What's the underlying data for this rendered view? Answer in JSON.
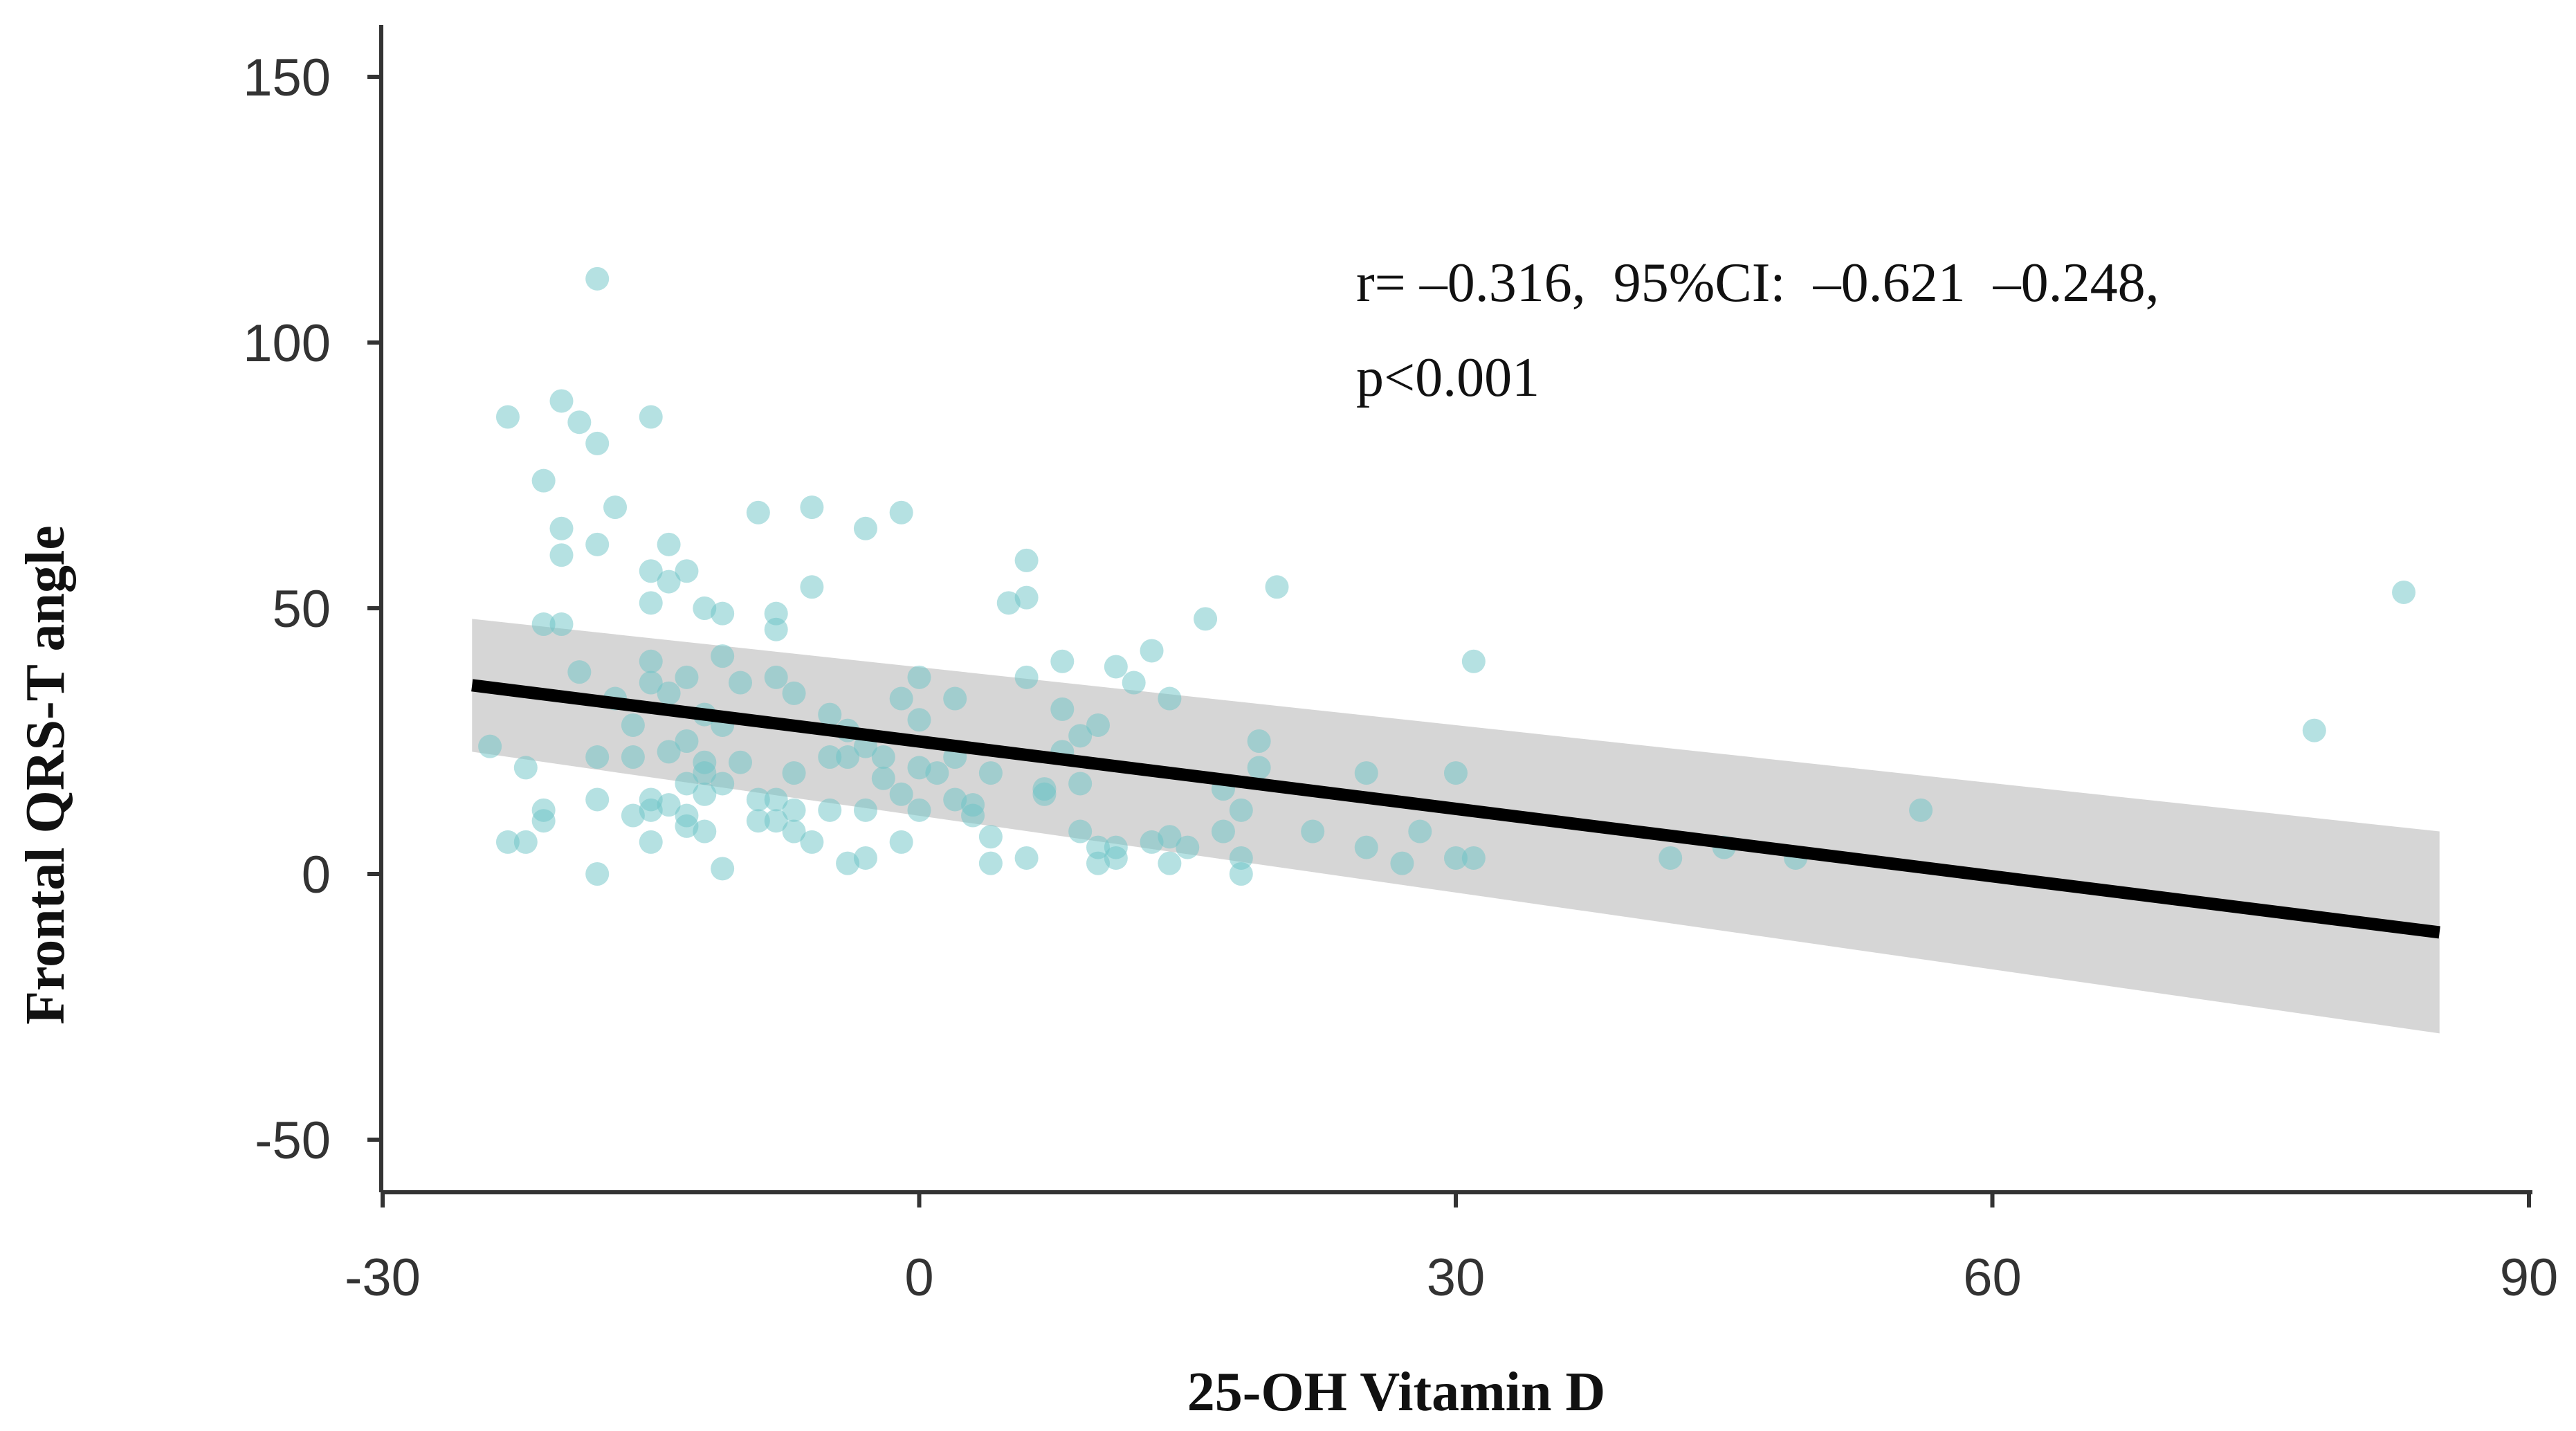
{
  "chart_data": {
    "type": "scatter",
    "title": "",
    "xlabel": "25-OH Vitamin D",
    "ylabel": "Frontal QRS-T angle",
    "xlim": [
      -30,
      90
    ],
    "ylim": [
      -60,
      160
    ],
    "xticks": [
      -30,
      0,
      30,
      60,
      90
    ],
    "yticks": [
      150,
      100,
      50,
      0,
      -50
    ],
    "grid": false,
    "annotation": {
      "line1": "r= –0.316,  95%CI:  –0.621  –0.248,",
      "line2": "p<0.001"
    },
    "regression": {
      "x_start": -25,
      "y_start": 35.5,
      "x_end": 85,
      "y_end": -11,
      "ci_start": [
        23,
        48
      ],
      "ci_end": [
        -30,
        8
      ]
    },
    "points": [
      [
        -18,
        112
      ],
      [
        -23,
        86
      ],
      [
        -15,
        86
      ],
      [
        -20,
        89
      ],
      [
        -19,
        85
      ],
      [
        -18,
        81
      ],
      [
        -21,
        74
      ],
      [
        -17,
        69
      ],
      [
        -20,
        65
      ],
      [
        -18,
        62
      ],
      [
        -14,
        62
      ],
      [
        -20,
        60
      ],
      [
        -15,
        57
      ],
      [
        -13,
        57
      ],
      [
        -14,
        55
      ],
      [
        -15,
        51
      ],
      [
        -12,
        50
      ],
      [
        -11,
        49
      ],
      [
        -21,
        47
      ],
      [
        -20,
        47
      ],
      [
        -8,
        49
      ],
      [
        -8,
        46
      ],
      [
        -9,
        68
      ],
      [
        -6,
        69
      ],
      [
        -3,
        65
      ],
      [
        -1,
        68
      ],
      [
        -6,
        54
      ],
      [
        -11,
        41
      ],
      [
        -15,
        40
      ],
      [
        -15,
        36
      ],
      [
        -19,
        38
      ],
      [
        -13,
        37
      ],
      [
        -10,
        36
      ],
      [
        -8,
        37
      ],
      [
        -7,
        34
      ],
      [
        -14,
        34
      ],
      [
        -17,
        33
      ],
      [
        -12,
        30
      ],
      [
        -5,
        30
      ],
      [
        -11,
        28
      ],
      [
        -16,
        28
      ],
      [
        -13,
        25
      ],
      [
        -14,
        23
      ],
      [
        -16,
        22
      ],
      [
        -10,
        21
      ],
      [
        -12,
        21
      ],
      [
        -18,
        22
      ],
      [
        -7,
        19
      ],
      [
        -12,
        19
      ],
      [
        -13,
        17
      ],
      [
        -11,
        17
      ],
      [
        -9,
        14
      ],
      [
        -12,
        15
      ],
      [
        -8,
        14
      ],
      [
        -15,
        14
      ],
      [
        -14,
        13
      ],
      [
        -18,
        14
      ],
      [
        -15,
        12
      ],
      [
        -16,
        11
      ],
      [
        -13,
        11
      ],
      [
        -8,
        10
      ],
      [
        -7,
        12
      ],
      [
        -9,
        10
      ],
      [
        -12,
        8
      ],
      [
        -13,
        9
      ],
      [
        -21,
        12
      ],
      [
        -21,
        10
      ],
      [
        -23,
        6
      ],
      [
        -22,
        6
      ],
      [
        -15,
        6
      ],
      [
        -11,
        1
      ],
      [
        -18,
        0
      ],
      [
        -24,
        24
      ],
      [
        -22,
        20
      ],
      [
        -7,
        8
      ],
      [
        -5,
        12
      ],
      [
        -4,
        2
      ],
      [
        -6,
        6
      ],
      [
        -3,
        3
      ],
      [
        -4,
        22
      ],
      [
        -3,
        24
      ],
      [
        -2,
        18
      ],
      [
        -1,
        15
      ],
      [
        0,
        20
      ],
      [
        -1,
        6
      ],
      [
        0,
        12
      ],
      [
        1,
        19
      ],
      [
        2,
        22
      ],
      [
        2,
        14
      ],
      [
        3,
        13
      ],
      [
        4,
        19
      ],
      [
        3,
        11
      ],
      [
        4,
        7
      ],
      [
        4,
        2
      ],
      [
        0,
        37
      ],
      [
        -1,
        33
      ],
      [
        0,
        29
      ],
      [
        2,
        33
      ],
      [
        -3,
        12
      ],
      [
        -2,
        22
      ],
      [
        -4,
        27
      ],
      [
        -5,
        22
      ],
      [
        5,
        51
      ],
      [
        6,
        52
      ],
      [
        6,
        59
      ],
      [
        6,
        37
      ],
      [
        7,
        16
      ],
      [
        7,
        15
      ],
      [
        8,
        31
      ],
      [
        9,
        26
      ],
      [
        8,
        23
      ],
      [
        9,
        17
      ],
      [
        8,
        40
      ],
      [
        9,
        8
      ],
      [
        10,
        5
      ],
      [
        11,
        3
      ],
      [
        10,
        2
      ],
      [
        11,
        5
      ],
      [
        11,
        39
      ],
      [
        10,
        28
      ],
      [
        12,
        36
      ],
      [
        13,
        42
      ],
      [
        14,
        33
      ],
      [
        14,
        7
      ],
      [
        15,
        5
      ],
      [
        13,
        6
      ],
      [
        14,
        2
      ],
      [
        16,
        48
      ],
      [
        17,
        16
      ],
      [
        17,
        8
      ],
      [
        18,
        3
      ],
      [
        18,
        0
      ],
      [
        18,
        12
      ],
      [
        19,
        25
      ],
      [
        19,
        20
      ],
      [
        20,
        54
      ],
      [
        22,
        8
      ],
      [
        25,
        19
      ],
      [
        25,
        5
      ],
      [
        27,
        2
      ],
      [
        28,
        8
      ],
      [
        30,
        19
      ],
      [
        31,
        3
      ],
      [
        30,
        3
      ],
      [
        31,
        40
      ],
      [
        42,
        3
      ],
      [
        45,
        5
      ],
      [
        49,
        3
      ],
      [
        56,
        12
      ],
      [
        78,
        27
      ],
      [
        83,
        53
      ],
      [
        6,
        3
      ]
    ]
  }
}
